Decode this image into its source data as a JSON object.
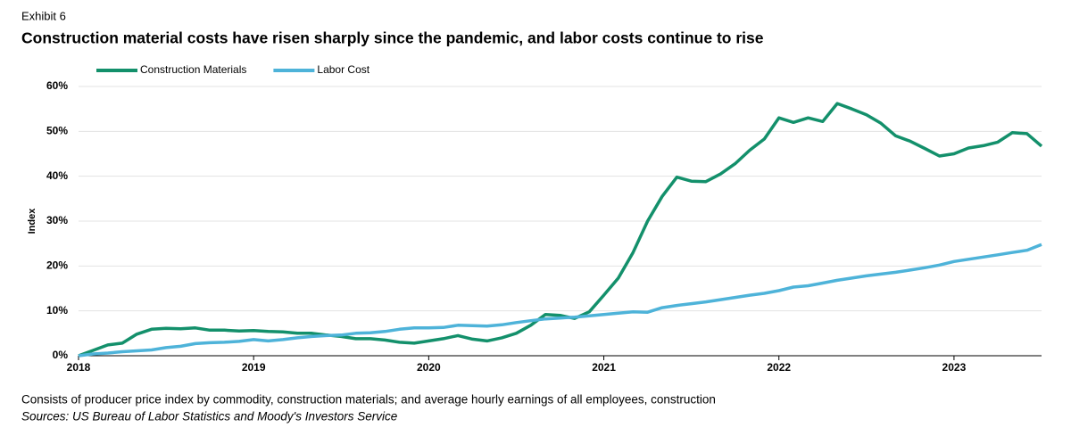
{
  "chart_data": {
    "type": "line",
    "exhibit": "Exhibit 6",
    "title": "Construction material costs have risen sharply since the pandemic, and labor costs continue to rise",
    "y_label": "Index",
    "note": "Consists of producer price index by commodity, construction materials; and average hourly earnings of all employees, construction",
    "source": "Sources: US Bureau of Labor Statistics and Moody's Investors Service",
    "x": [
      2018,
      2018.083,
      2018.167,
      2018.25,
      2018.333,
      2018.417,
      2018.5,
      2018.583,
      2018.667,
      2018.75,
      2018.833,
      2018.917,
      2019,
      2019.083,
      2019.167,
      2019.25,
      2019.333,
      2019.417,
      2019.5,
      2019.583,
      2019.667,
      2019.75,
      2019.833,
      2019.917,
      2020,
      2020.083,
      2020.167,
      2020.25,
      2020.333,
      2020.417,
      2020.5,
      2020.583,
      2020.667,
      2020.75,
      2020.833,
      2020.917,
      2021,
      2021.083,
      2021.167,
      2021.25,
      2021.333,
      2021.417,
      2021.5,
      2021.583,
      2021.667,
      2021.75,
      2021.833,
      2021.917,
      2022,
      2022.083,
      2022.167,
      2022.25,
      2022.333,
      2022.417,
      2022.5,
      2022.583,
      2022.667,
      2022.75,
      2022.833,
      2022.917,
      2023,
      2023.083,
      2023.167,
      2023.25,
      2023.333,
      2023.417,
      2023.5
    ],
    "series": [
      {
        "name": "Construction Materials",
        "color": "#13906b",
        "values": [
          0,
          1.2,
          2.4,
          2.8,
          4.8,
          5.9,
          6.1,
          6.0,
          6.2,
          5.7,
          5.7,
          5.5,
          5.6,
          5.4,
          5.3,
          5.0,
          5.0,
          4.6,
          4.3,
          3.8,
          3.8,
          3.5,
          3.0,
          2.8,
          3.3,
          3.8,
          4.5,
          3.7,
          3.3,
          4.0,
          5.0,
          6.8,
          9.2,
          9.0,
          8.3,
          9.8,
          13.5,
          17.3,
          23,
          30,
          35.5,
          39.8,
          38.9,
          38.8,
          40.5,
          42.8,
          45.8,
          48.3,
          53,
          52,
          53,
          52.2,
          56.2,
          55,
          53.7,
          51.8,
          49,
          47.8,
          46.2,
          44.5,
          45,
          46.3,
          46.8,
          47.6,
          49.7,
          49.5,
          46.7
        ]
      },
      {
        "name": "Labor Cost",
        "color": "#4eb3d9",
        "values": [
          0,
          0.4,
          0.6,
          0.9,
          1.1,
          1.3,
          1.8,
          2.1,
          2.7,
          2.9,
          3.0,
          3.2,
          3.6,
          3.3,
          3.6,
          4.0,
          4.3,
          4.5,
          4.6,
          5.0,
          5.1,
          5.4,
          5.9,
          6.2,
          6.2,
          6.3,
          6.8,
          6.7,
          6.6,
          6.9,
          7.4,
          7.8,
          8.2,
          8.4,
          8.6,
          8.9,
          9.2,
          9.5,
          9.8,
          9.7,
          10.7,
          11.2,
          11.6,
          12.0,
          12.5,
          13.0,
          13.5,
          13.9,
          14.5,
          15.3,
          15.6,
          16.2,
          16.8,
          17.3,
          17.8,
          18.2,
          18.6,
          19.1,
          19.6,
          20.2,
          21.0,
          21.5,
          22.0,
          22.5,
          23.0,
          23.5,
          24.8
        ]
      }
    ],
    "xlim": [
      2018,
      2023.5
    ],
    "xticks": [
      2018,
      2019,
      2020,
      2021,
      2022,
      2023
    ],
    "ylim": [
      0,
      60
    ],
    "yticks": [
      {
        "value": 0,
        "label": "0%"
      },
      {
        "value": 10,
        "label": "10%"
      },
      {
        "value": 20,
        "label": "20%"
      },
      {
        "value": 30,
        "label": "30%"
      },
      {
        "value": 40,
        "label": "40%"
      },
      {
        "value": 50,
        "label": "50%"
      },
      {
        "value": 60,
        "label": "60%"
      }
    ],
    "grid": true,
    "legend": "top-left"
  }
}
